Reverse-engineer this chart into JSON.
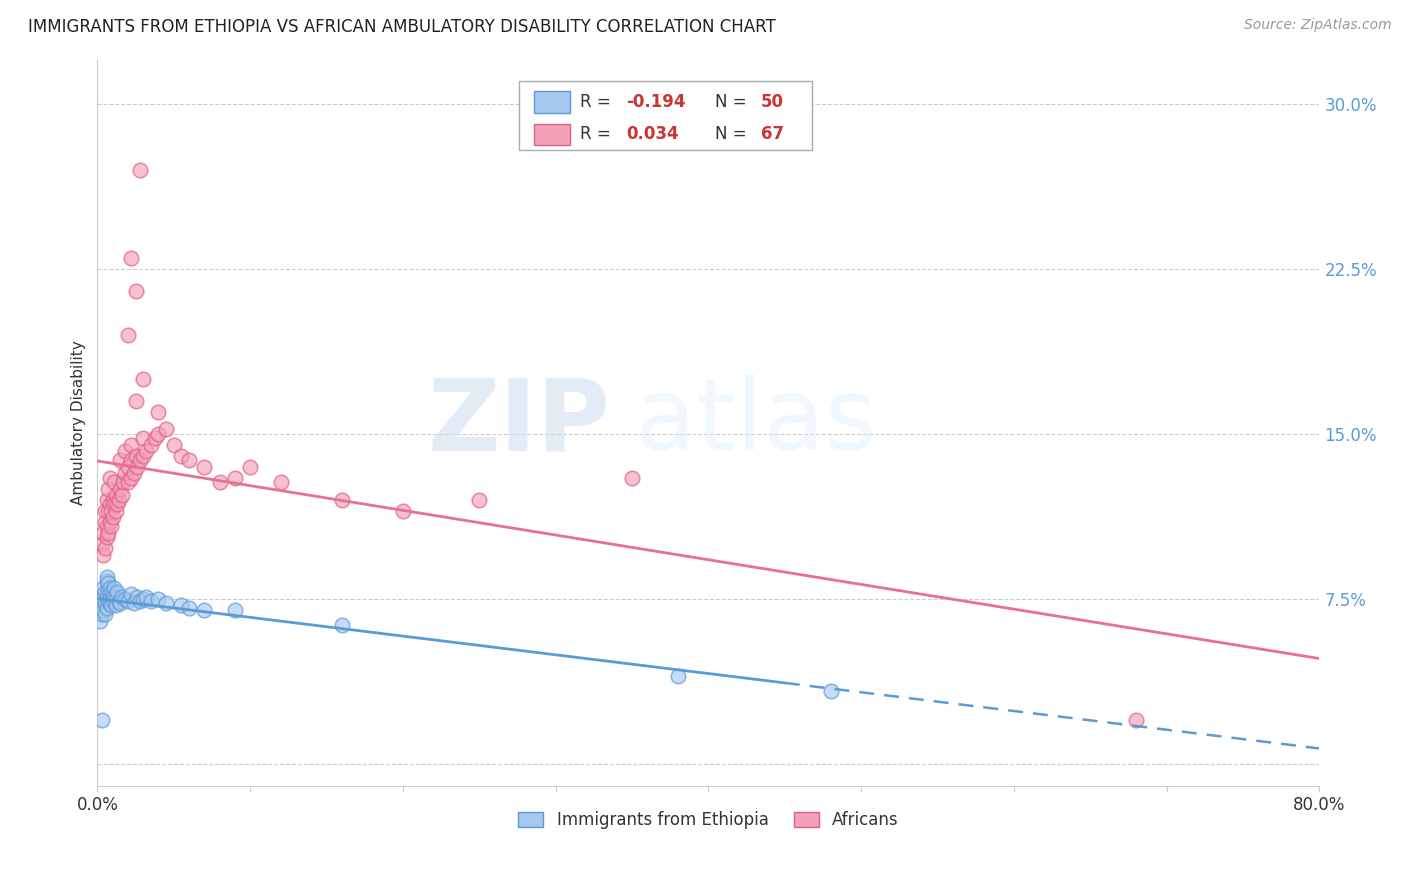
{
  "title": "IMMIGRANTS FROM ETHIOPIA VS AFRICAN AMBULATORY DISABILITY CORRELATION CHART",
  "source": "Source: ZipAtlas.com",
  "ylabel": "Ambulatory Disability",
  "xlabel_blue": "Immigrants from Ethiopia",
  "xlabel_pink": "Africans",
  "xlim": [
    0.0,
    0.8
  ],
  "ylim": [
    -0.01,
    0.32
  ],
  "yticks": [
    0.0,
    0.075,
    0.15,
    0.225,
    0.3
  ],
  "ytick_labels": [
    "",
    "7.5%",
    "15.0%",
    "22.5%",
    "30.0%"
  ],
  "grid_color": "#cccccc",
  "watermark_zip": "ZIP",
  "watermark_atlas": "atlas",
  "legend_r1_label": "R = ",
  "legend_r1_val": "-0.194",
  "legend_n1_label": "N = ",
  "legend_n1_val": "50",
  "legend_r2_label": "R = ",
  "legend_r2_val": "0.034",
  "legend_n2_label": "N = ",
  "legend_n2_val": "67",
  "blue_fill": "#a8c8f0",
  "blue_edge": "#5b9bd5",
  "pink_fill": "#f4a0b8",
  "pink_edge": "#e06080",
  "blue_line": "#5b9bd5",
  "pink_line": "#e87090",
  "title_fontsize": 12,
  "source_fontsize": 10,
  "tick_color": "#5b9bd5",
  "blue_scatter": [
    [
      0.002,
      0.065
    ],
    [
      0.003,
      0.072
    ],
    [
      0.003,
      0.068
    ],
    [
      0.004,
      0.075
    ],
    [
      0.004,
      0.07
    ],
    [
      0.004,
      0.08
    ],
    [
      0.005,
      0.073
    ],
    [
      0.005,
      0.078
    ],
    [
      0.005,
      0.068
    ],
    [
      0.006,
      0.076
    ],
    [
      0.006,
      0.071
    ],
    [
      0.006,
      0.083
    ],
    [
      0.006,
      0.085
    ],
    [
      0.007,
      0.074
    ],
    [
      0.007,
      0.079
    ],
    [
      0.007,
      0.082
    ],
    [
      0.008,
      0.076
    ],
    [
      0.008,
      0.073
    ],
    [
      0.008,
      0.08
    ],
    [
      0.009,
      0.072
    ],
    [
      0.009,
      0.078
    ],
    [
      0.01,
      0.077
    ],
    [
      0.01,
      0.074
    ],
    [
      0.011,
      0.08
    ],
    [
      0.011,
      0.076
    ],
    [
      0.012,
      0.075
    ],
    [
      0.012,
      0.072
    ],
    [
      0.013,
      0.078
    ],
    [
      0.014,
      0.074
    ],
    [
      0.015,
      0.073
    ],
    [
      0.016,
      0.076
    ],
    [
      0.018,
      0.075
    ],
    [
      0.02,
      0.074
    ],
    [
      0.022,
      0.077
    ],
    [
      0.024,
      0.073
    ],
    [
      0.026,
      0.076
    ],
    [
      0.028,
      0.074
    ],
    [
      0.03,
      0.075
    ],
    [
      0.032,
      0.076
    ],
    [
      0.035,
      0.074
    ],
    [
      0.04,
      0.075
    ],
    [
      0.045,
      0.073
    ],
    [
      0.055,
      0.072
    ],
    [
      0.06,
      0.071
    ],
    [
      0.07,
      0.07
    ],
    [
      0.09,
      0.07
    ],
    [
      0.16,
      0.063
    ],
    [
      0.003,
      0.02
    ],
    [
      0.38,
      0.04
    ],
    [
      0.48,
      0.033
    ]
  ],
  "pink_scatter": [
    [
      0.003,
      0.1
    ],
    [
      0.004,
      0.095
    ],
    [
      0.004,
      0.105
    ],
    [
      0.005,
      0.098
    ],
    [
      0.005,
      0.11
    ],
    [
      0.005,
      0.115
    ],
    [
      0.006,
      0.103
    ],
    [
      0.006,
      0.108
    ],
    [
      0.006,
      0.12
    ],
    [
      0.007,
      0.105
    ],
    [
      0.007,
      0.115
    ],
    [
      0.007,
      0.125
    ],
    [
      0.008,
      0.11
    ],
    [
      0.008,
      0.118
    ],
    [
      0.008,
      0.13
    ],
    [
      0.009,
      0.108
    ],
    [
      0.009,
      0.115
    ],
    [
      0.01,
      0.112
    ],
    [
      0.01,
      0.12
    ],
    [
      0.011,
      0.118
    ],
    [
      0.011,
      0.128
    ],
    [
      0.012,
      0.115
    ],
    [
      0.012,
      0.122
    ],
    [
      0.013,
      0.118
    ],
    [
      0.014,
      0.12
    ],
    [
      0.015,
      0.125
    ],
    [
      0.015,
      0.138
    ],
    [
      0.016,
      0.122
    ],
    [
      0.017,
      0.128
    ],
    [
      0.018,
      0.132
    ],
    [
      0.018,
      0.142
    ],
    [
      0.02,
      0.128
    ],
    [
      0.02,
      0.135
    ],
    [
      0.022,
      0.13
    ],
    [
      0.022,
      0.138
    ],
    [
      0.022,
      0.145
    ],
    [
      0.024,
      0.132
    ],
    [
      0.025,
      0.14
    ],
    [
      0.026,
      0.135
    ],
    [
      0.028,
      0.138
    ],
    [
      0.03,
      0.14
    ],
    [
      0.03,
      0.148
    ],
    [
      0.032,
      0.142
    ],
    [
      0.035,
      0.145
    ],
    [
      0.038,
      0.148
    ],
    [
      0.04,
      0.15
    ],
    [
      0.04,
      0.16
    ],
    [
      0.045,
      0.152
    ],
    [
      0.05,
      0.145
    ],
    [
      0.055,
      0.14
    ],
    [
      0.06,
      0.138
    ],
    [
      0.07,
      0.135
    ],
    [
      0.08,
      0.128
    ],
    [
      0.09,
      0.13
    ],
    [
      0.1,
      0.135
    ],
    [
      0.12,
      0.128
    ],
    [
      0.16,
      0.12
    ],
    [
      0.2,
      0.115
    ],
    [
      0.25,
      0.12
    ],
    [
      0.35,
      0.13
    ],
    [
      0.025,
      0.165
    ],
    [
      0.03,
      0.175
    ],
    [
      0.02,
      0.195
    ],
    [
      0.025,
      0.215
    ],
    [
      0.022,
      0.23
    ],
    [
      0.028,
      0.27
    ],
    [
      0.68,
      0.02
    ]
  ]
}
